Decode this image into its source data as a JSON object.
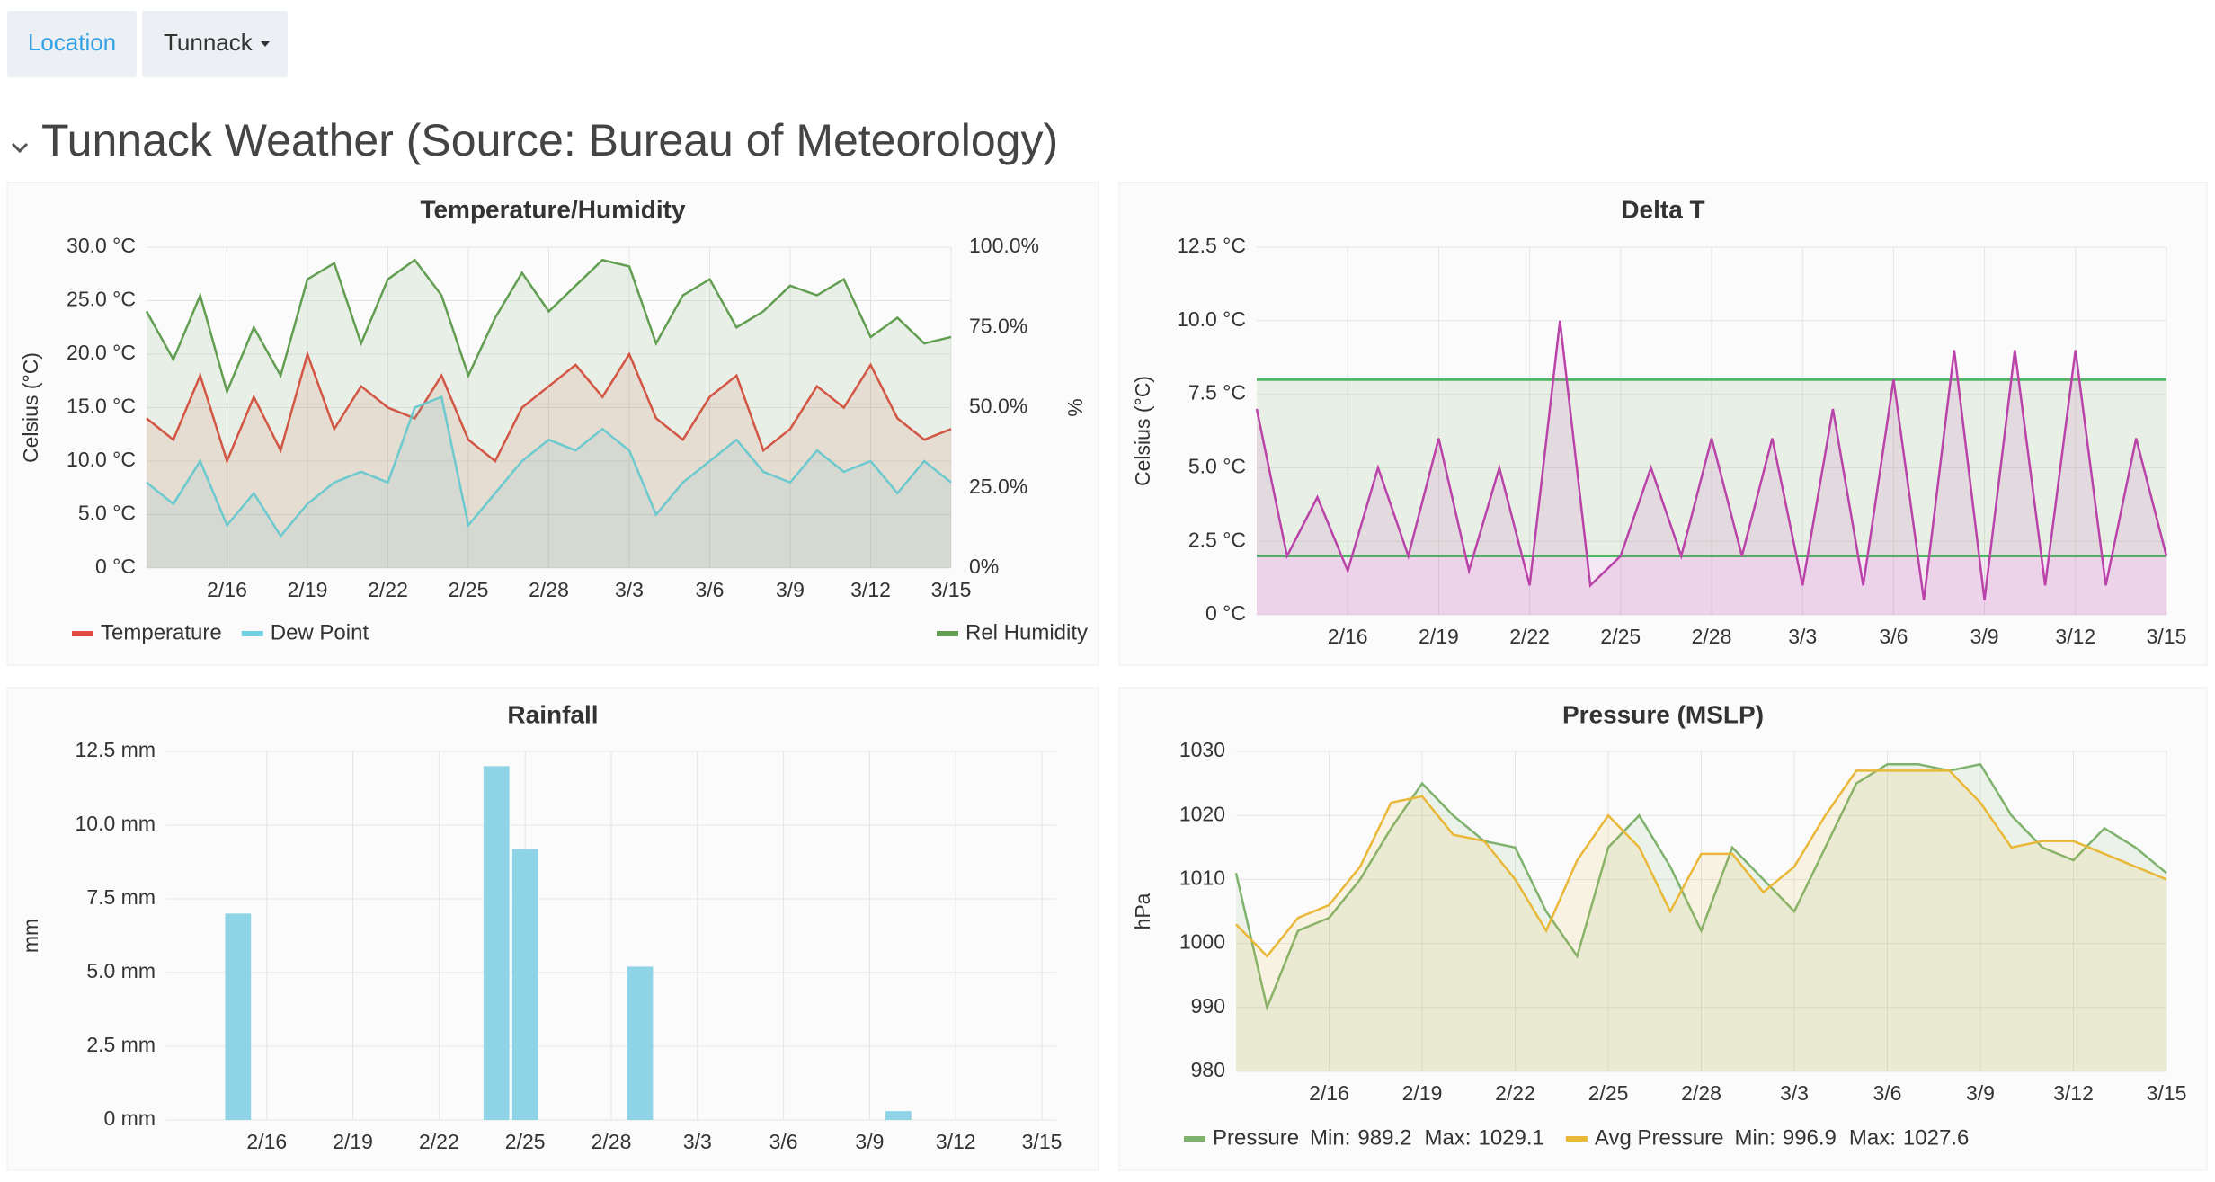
{
  "header": {
    "location_button": "Location",
    "location_value": "Tunnack",
    "row_title": "Tunnack Weather (Source: Bureau of Meteorology)"
  },
  "chart_data": [
    {
      "type": "line",
      "title": "Temperature/Humidity",
      "y_label": "Celsius (°C)",
      "y2_label": "%",
      "x": [
        "2/13",
        "2/14",
        "2/15",
        "2/16",
        "2/17",
        "2/18",
        "2/19",
        "2/20",
        "2/21",
        "2/22",
        "2/23",
        "2/24",
        "2/25",
        "2/26",
        "2/27",
        "2/28",
        "3/1",
        "3/2",
        "3/3",
        "3/4",
        "3/5",
        "3/6",
        "3/7",
        "3/8",
        "3/9",
        "3/10",
        "3/11",
        "3/12",
        "3/13",
        "3/14",
        "3/15"
      ],
      "xticks": [
        "2/16",
        "2/19",
        "2/22",
        "2/25",
        "2/28",
        "3/3",
        "3/6",
        "3/9",
        "3/12",
        "3/15"
      ],
      "ylim": [
        0,
        30
      ],
      "yticks": [
        {
          "value": 0,
          "label": "0 °C"
        },
        {
          "value": 5,
          "label": "5.0 °C"
        },
        {
          "value": 10,
          "label": "10.0 °C"
        },
        {
          "value": 15,
          "label": "15.0 °C"
        },
        {
          "value": 20,
          "label": "20.0 °C"
        },
        {
          "value": 25,
          "label": "25.0 °C"
        },
        {
          "value": 30,
          "label": "30.0 °C"
        }
      ],
      "y2lim": [
        0,
        100
      ],
      "y2ticks": [
        {
          "value": 0,
          "label": "0%"
        },
        {
          "value": 25,
          "label": "25.0%"
        },
        {
          "value": 50,
          "label": "50.0%"
        },
        {
          "value": 75,
          "label": "75.0%"
        },
        {
          "value": 100,
          "label": "100.0%"
        }
      ],
      "grid": true,
      "series": [
        {
          "name": "Temperature",
          "color": "#e24d42",
          "values": [
            14,
            12,
            18,
            10,
            16,
            11,
            20,
            13,
            17,
            15,
            14,
            18,
            12,
            10,
            15,
            17,
            19,
            16,
            20,
            14,
            12,
            16,
            18,
            11,
            13,
            17,
            15,
            19,
            14,
            12,
            13
          ]
        },
        {
          "name": "Dew Point",
          "color": "#6ed0e0",
          "values": [
            8,
            6,
            10,
            4,
            7,
            3,
            6,
            8,
            9,
            8,
            15,
            16,
            4,
            7,
            10,
            12,
            11,
            13,
            11,
            5,
            8,
            10,
            12,
            9,
            8,
            11,
            9,
            10,
            7,
            10,
            8
          ]
        },
        {
          "name": "Rel Humidity",
          "color": "#629e51",
          "axis": "y2",
          "values": [
            80,
            65,
            85,
            55,
            75,
            60,
            90,
            95,
            70,
            90,
            96,
            85,
            60,
            78,
            92,
            80,
            88,
            96,
            94,
            70,
            85,
            90,
            75,
            80,
            88,
            85,
            90,
            72,
            78,
            70,
            72
          ]
        }
      ]
    },
    {
      "type": "line",
      "title": "Delta T",
      "y_label": "Celsius (°C)",
      "x": [
        "2/13",
        "2/14",
        "2/15",
        "2/16",
        "2/17",
        "2/18",
        "2/19",
        "2/20",
        "2/21",
        "2/22",
        "2/23",
        "2/24",
        "2/25",
        "2/26",
        "2/27",
        "2/28",
        "3/1",
        "3/2",
        "3/3",
        "3/4",
        "3/5",
        "3/6",
        "3/7",
        "3/8",
        "3/9",
        "3/10",
        "3/11",
        "3/12",
        "3/13",
        "3/14",
        "3/15"
      ],
      "xticks": [
        "2/16",
        "2/19",
        "2/22",
        "2/25",
        "2/28",
        "3/3",
        "3/6",
        "3/9",
        "3/12",
        "3/15"
      ],
      "ylim": [
        0,
        12.5
      ],
      "yticks": [
        {
          "value": 0,
          "label": "0 °C"
        },
        {
          "value": 2.5,
          "label": "2.5 °C"
        },
        {
          "value": 5,
          "label": "5.0 °C"
        },
        {
          "value": 7.5,
          "label": "7.5 °C"
        },
        {
          "value": 10,
          "label": "10.0 °C"
        },
        {
          "value": 12.5,
          "label": "12.5 °C"
        }
      ],
      "grid": true,
      "thresholds": [
        2,
        8
      ],
      "series": [
        {
          "color": "#ba43a9",
          "values": [
            7,
            2,
            4,
            1.5,
            5,
            2,
            6,
            1.5,
            5,
            1,
            10,
            1,
            2,
            5,
            2,
            6,
            2,
            6,
            1,
            7,
            1,
            8,
            0.5,
            9,
            0.5,
            9,
            1,
            9,
            1,
            6,
            2
          ]
        }
      ]
    },
    {
      "type": "bar",
      "title": "Rainfall",
      "y_label": "mm",
      "x": [
        "2/13",
        "2/14",
        "2/15",
        "2/16",
        "2/17",
        "2/18",
        "2/19",
        "2/20",
        "2/21",
        "2/22",
        "2/23",
        "2/24",
        "2/25",
        "2/26",
        "2/27",
        "2/28",
        "3/1",
        "3/2",
        "3/3",
        "3/4",
        "3/5",
        "3/6",
        "3/7",
        "3/8",
        "3/9",
        "3/10",
        "3/11",
        "3/12",
        "3/13",
        "3/14",
        "3/15"
      ],
      "xticks": [
        "2/16",
        "2/19",
        "2/22",
        "2/25",
        "2/28",
        "3/3",
        "3/6",
        "3/9",
        "3/12",
        "3/15"
      ],
      "ylim": [
        0,
        12.5
      ],
      "yticks": [
        {
          "value": 0,
          "label": "0 mm"
        },
        {
          "value": 2.5,
          "label": "2.5 mm"
        },
        {
          "value": 5,
          "label": "5.0 mm"
        },
        {
          "value": 7.5,
          "label": "7.5 mm"
        },
        {
          "value": 10,
          "label": "10.0 mm"
        },
        {
          "value": 12.5,
          "label": "12.5 mm"
        }
      ],
      "grid": true,
      "series": [
        {
          "color": "#8fd3e6",
          "values": [
            0,
            0,
            7,
            0,
            0,
            0,
            0,
            0,
            0,
            0,
            0,
            12,
            9.2,
            0,
            0,
            0,
            5.2,
            0,
            0,
            0,
            0,
            0,
            0,
            0,
            0,
            0.3,
            0,
            0,
            0,
            0,
            0
          ]
        }
      ]
    },
    {
      "type": "line",
      "title": "Pressure (MSLP)",
      "y_label": "hPa",
      "x": [
        "2/13",
        "2/14",
        "2/15",
        "2/16",
        "2/17",
        "2/18",
        "2/19",
        "2/20",
        "2/21",
        "2/22",
        "2/23",
        "2/24",
        "2/25",
        "2/26",
        "2/27",
        "2/28",
        "3/1",
        "3/2",
        "3/3",
        "3/4",
        "3/5",
        "3/6",
        "3/7",
        "3/8",
        "3/9",
        "3/10",
        "3/11",
        "3/12",
        "3/13",
        "3/14",
        "3/15"
      ],
      "xticks": [
        "2/16",
        "2/19",
        "2/22",
        "2/25",
        "2/28",
        "3/3",
        "3/6",
        "3/9",
        "3/12",
        "3/15"
      ],
      "ylim": [
        980,
        1030
      ],
      "yticks": [
        980,
        990,
        1000,
        1010,
        1020,
        1030
      ],
      "grid": true,
      "series": [
        {
          "name": "Pressure",
          "color": "#7eb26d",
          "values": [
            1011,
            990,
            1002,
            1004,
            1010,
            1018,
            1025,
            1020,
            1016,
            1015,
            1005,
            998,
            1015,
            1020,
            1012,
            1002,
            1015,
            1010,
            1005,
            1015,
            1025,
            1028,
            1028,
            1027,
            1028,
            1020,
            1015,
            1013,
            1018,
            1015,
            1011
          ],
          "stats": [
            {
              "label": "Min:",
              "value": 989.2
            },
            {
              "label": "Max:",
              "value": 1029.1
            }
          ]
        },
        {
          "name": "Avg Pressure",
          "color": "#eab839",
          "values": [
            1003,
            998,
            1004,
            1006,
            1012,
            1022,
            1023,
            1017,
            1016,
            1010,
            1002,
            1013,
            1020,
            1015,
            1005,
            1014,
            1014,
            1008,
            1012,
            1020,
            1027,
            1027,
            1027,
            1027,
            1022,
            1015,
            1016,
            1016,
            1014,
            1012,
            1010
          ],
          "stats": [
            {
              "label": "Min:",
              "value": 996.9
            },
            {
              "label": "Max:",
              "value": 1027.6
            }
          ]
        }
      ]
    }
  ]
}
